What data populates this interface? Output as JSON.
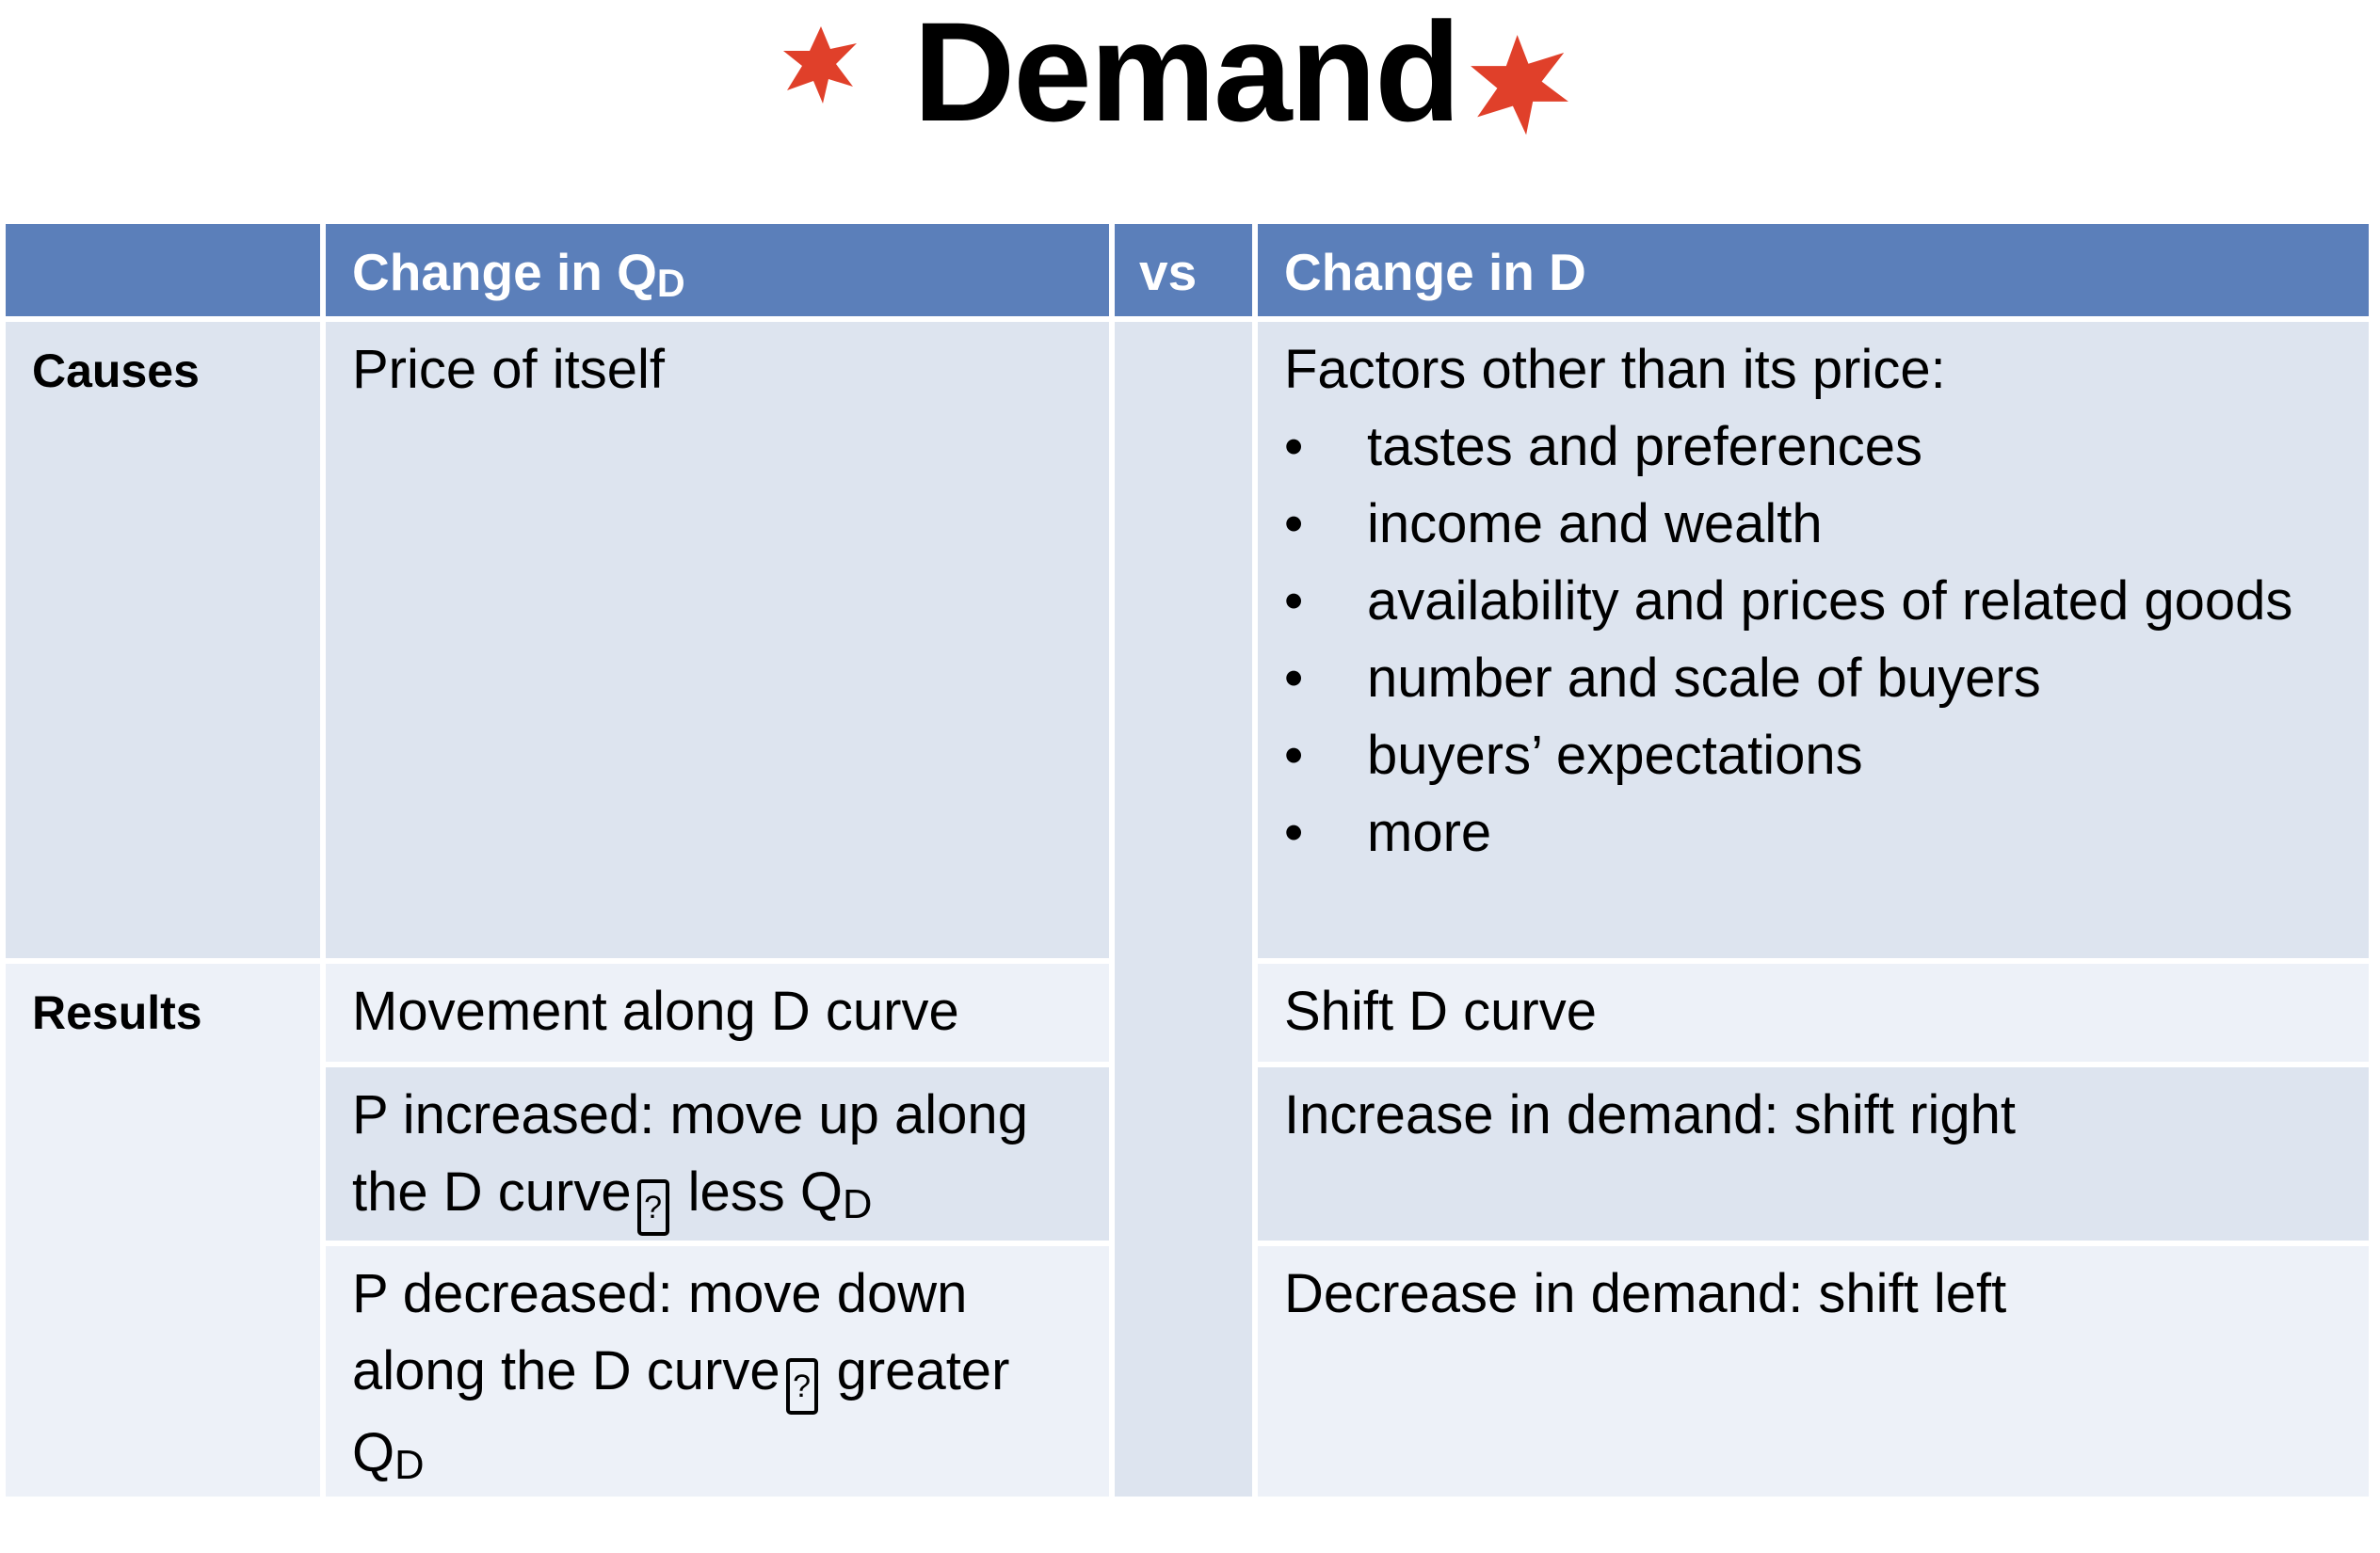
{
  "title": "Demand",
  "decoration_color": "#e0402a",
  "header": {
    "blank": "",
    "col_qd_text": "Change in Q",
    "col_qd_sub": "D",
    "vs": "vs",
    "col_d": "Change in D"
  },
  "rows": {
    "causes": {
      "label": "Causes",
      "qd": "Price of itself",
      "d_intro": "Factors other than its price:",
      "d_bullets": [
        "tastes and preferences",
        "income and wealth",
        "availability and prices of related goods",
        "number and scale of buyers",
        "buyers’ expectations",
        "more"
      ],
      "bullet_symbol": "•"
    },
    "results": {
      "label": "Results",
      "qd_1": "Movement along D curve",
      "d_1": "Shift D curve",
      "qd_2_text": "P increased: move up along the D curve",
      "qd_2_after": "less Q",
      "qd_2_sub": "D",
      "d_2": "Increase in demand: shift right",
      "qd_3_text": "P decreased: move down along the D curve",
      "qd_3_after": "greater Q",
      "qd_3_sub": "D",
      "d_3": "Decrease in demand: shift left",
      "unknown_glyph": "?"
    }
  },
  "colors": {
    "header_bg": "#5b7fba",
    "cell_dark": "#dde4ef",
    "cell_light": "#edf1f8"
  }
}
